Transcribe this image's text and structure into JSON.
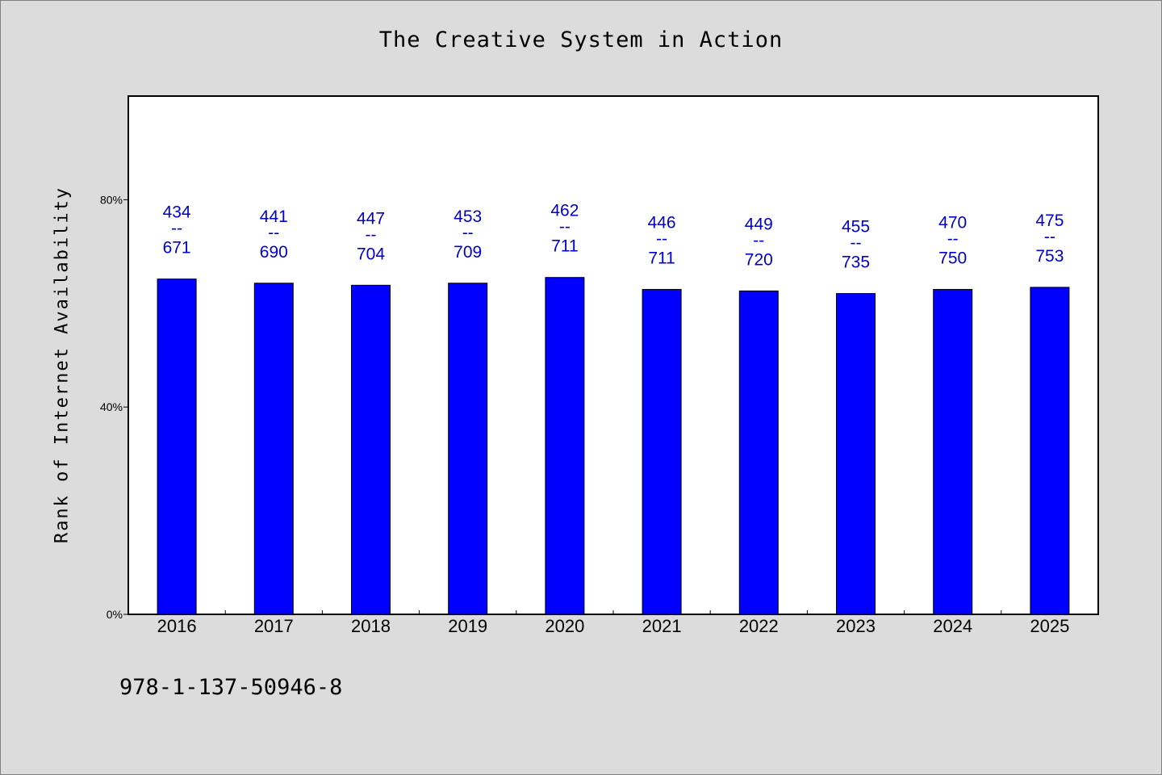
{
  "chart_data": {
    "type": "bar",
    "title": "The Creative System in Action",
    "ylabel": "Rank of Internet Availability",
    "xlabel": "",
    "categories": [
      "2016",
      "2017",
      "2018",
      "2019",
      "2020",
      "2021",
      "2022",
      "2023",
      "2024",
      "2025"
    ],
    "values": [
      64.7,
      63.9,
      63.5,
      63.9,
      65.0,
      62.7,
      62.4,
      61.9,
      62.7,
      63.1
    ],
    "bar_labels": [
      {
        "top": "434",
        "sep": "--",
        "bottom": "671"
      },
      {
        "top": "441",
        "sep": "--",
        "bottom": "690"
      },
      {
        "top": "447",
        "sep": "--",
        "bottom": "704"
      },
      {
        "top": "453",
        "sep": "--",
        "bottom": "709"
      },
      {
        "top": "462",
        "sep": "--",
        "bottom": "711"
      },
      {
        "top": "446",
        "sep": "--",
        "bottom": "711"
      },
      {
        "top": "449",
        "sep": "--",
        "bottom": "720"
      },
      {
        "top": "455",
        "sep": "--",
        "bottom": "735"
      },
      {
        "top": "470",
        "sep": "--",
        "bottom": "750"
      },
      {
        "top": "475",
        "sep": "--",
        "bottom": "753"
      }
    ],
    "y_ticks": [
      0,
      40,
      80
    ],
    "y_tick_labels": [
      "0%",
      "40%",
      "80%"
    ],
    "ylim": [
      0,
      100
    ],
    "grid": false,
    "colors": {
      "bar": "#0000ff",
      "bar_label": "#0000cc",
      "plot_background": "#ffffff",
      "page_background": "#dcdcdc"
    }
  },
  "footer": {
    "code": "978-1-137-50946-8"
  }
}
